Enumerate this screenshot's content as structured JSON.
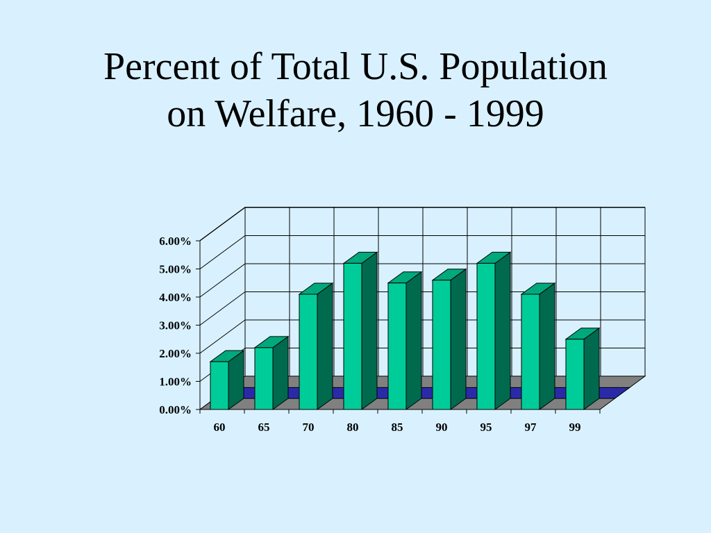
{
  "slide": {
    "title_line1": "Percent of Total U.S. Population",
    "title_line2": "on Welfare, 1960 - 1999"
  },
  "colors": {
    "background": "#d9f1ff",
    "bar_front": "#00cc99",
    "bar_side": "#006a4e",
    "bar_top": "#00a97c",
    "floor": "#808080",
    "floor_stripe": "#2a2aa8"
  },
  "chart_data": {
    "type": "bar",
    "style": "3d",
    "title": "Percent of Total U.S. Population on Welfare, 1960 - 1999",
    "categories": [
      "60",
      "65",
      "70",
      "80",
      "85",
      "90",
      "95",
      "97",
      "99"
    ],
    "values": [
      1.7,
      2.2,
      4.1,
      5.2,
      4.5,
      4.6,
      5.2,
      4.1,
      2.5
    ],
    "unit": "%",
    "yticks": [
      "0.00%",
      "1.00%",
      "2.00%",
      "3.00%",
      "4.00%",
      "5.00%",
      "6.00%"
    ],
    "ylim": [
      0,
      6
    ],
    "xlabel": "",
    "ylabel": "",
    "grid": true,
    "legend": "none"
  }
}
